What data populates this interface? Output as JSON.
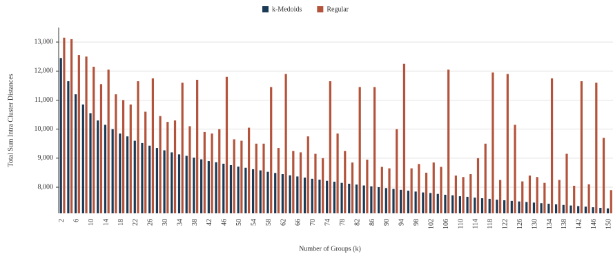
{
  "chart_data": {
    "type": "bar",
    "x_label": "Number of Groups (k)",
    "y_label": "Total Sum Intra Cluster Distances",
    "categories": [
      "2",
      null,
      "6",
      null,
      "10",
      null,
      "14",
      null,
      "18",
      null,
      "22",
      null,
      "26",
      null,
      "30",
      null,
      "34",
      null,
      "38",
      null,
      "42",
      null,
      "46",
      null,
      "50",
      null,
      "54",
      null,
      "58",
      null,
      "62",
      null,
      "66",
      null,
      "70",
      null,
      "74",
      null,
      "78",
      null,
      "82",
      null,
      "86",
      null,
      "90",
      null,
      "94",
      null,
      "98",
      null,
      "102",
      null,
      "106",
      null,
      "110",
      null,
      "114",
      null,
      "118",
      null,
      "122",
      null,
      "126",
      null,
      "130",
      null,
      "134",
      null,
      "138",
      null,
      "142",
      null,
      "146",
      null,
      "150"
    ],
    "series": [
      {
        "name": "k-Medoids",
        "color": "#1b3a55",
        "values": [
          12450,
          11650,
          11200,
          10850,
          10550,
          10300,
          10150,
          10000,
          9850,
          9750,
          9600,
          9520,
          9430,
          9350,
          9270,
          9200,
          9130,
          9080,
          9020,
          8960,
          8900,
          8860,
          8810,
          8760,
          8710,
          8670,
          8620,
          8580,
          8530,
          8490,
          8450,
          8410,
          8370,
          8330,
          8290,
          8260,
          8220,
          8190,
          8150,
          8120,
          8090,
          8060,
          8030,
          8000,
          7970,
          7940,
          7910,
          7880,
          7850,
          7820,
          7800,
          7770,
          7740,
          7720,
          7690,
          7670,
          7640,
          7620,
          7600,
          7570,
          7550,
          7530,
          7510,
          7490,
          7470,
          7450,
          7430,
          7410,
          7390,
          7370,
          7350,
          7330,
          7310,
          7290,
          7270
        ]
      },
      {
        "name": "Regular",
        "color": "#b4533b",
        "values": [
          13150,
          13100,
          12550,
          12500,
          12150,
          11550,
          12050,
          11200,
          11000,
          10850,
          11650,
          10600,
          11750,
          10450,
          10250,
          10300,
          11600,
          10100,
          11700,
          9900,
          9850,
          10000,
          11800,
          9650,
          9600,
          10050,
          9500,
          9500,
          11450,
          9350,
          11900,
          9250,
          9200,
          9750,
          9150,
          9000,
          11650,
          9850,
          9250,
          8850,
          11450,
          8950,
          11450,
          8700,
          8650,
          10000,
          12250,
          8650,
          8800,
          8500,
          8850,
          8700,
          12050,
          8400,
          8350,
          8450,
          9000,
          9500,
          11950,
          8250,
          11900,
          10150,
          8200,
          8400,
          8350,
          8150,
          11750,
          8250,
          9150,
          8050,
          11650,
          8100,
          11600,
          9700,
          7900
        ]
      }
    ],
    "ylim": [
      7100,
      13500
    ],
    "yticks": [
      {
        "value": 8000,
        "label": "8,000"
      },
      {
        "value": 9000,
        "label": "9,000"
      },
      {
        "value": 10000,
        "label": "10,000"
      },
      {
        "value": 11000,
        "label": "11,000"
      },
      {
        "value": 12000,
        "label": "12,000"
      },
      {
        "value": 13000,
        "label": "13,000"
      }
    ],
    "grid": true
  }
}
